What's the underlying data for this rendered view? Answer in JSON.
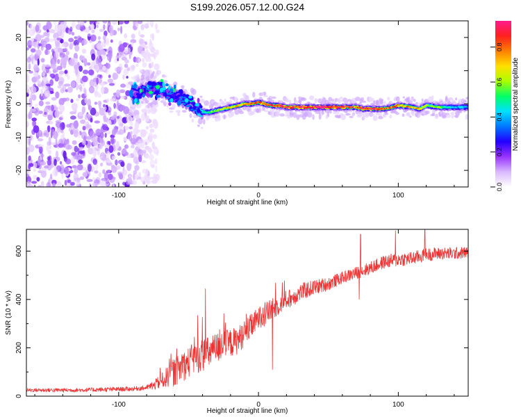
{
  "title": "S199.2026.057.12.00.G24",
  "chart_data": [
    {
      "type": "heatmap",
      "name": "spectrogram",
      "xlabel": "Height of straight line (km)",
      "ylabel": "Frequency (Hz)",
      "xlim": [
        -166,
        150
      ],
      "ylim": [
        -25,
        25
      ],
      "xticks": [
        -100,
        0,
        100
      ],
      "xtick_labels": [
        "-100",
        "0",
        "100"
      ],
      "yticks": [
        -20,
        -10,
        0,
        10,
        20
      ],
      "ytick_labels": [
        "-20",
        "-10",
        "0",
        "10",
        "20"
      ],
      "colorbar": {
        "label": "Normalized spectral amplitude",
        "range": [
          0,
          0.95
        ],
        "ticks": [
          0.0,
          0.2,
          0.4,
          0.6,
          0.8
        ],
        "tick_labels": [
          "0.0",
          "0.2",
          "0.4",
          "0.6",
          "0.8"
        ],
        "colormap": [
          "#ffffff",
          "#d9b8ff",
          "#9933ff",
          "#2200ff",
          "#0077ff",
          "#00e0ff",
          "#00ff66",
          "#aaff00",
          "#ffe000",
          "#ff8000",
          "#ff2020",
          "#ff1a8c"
        ]
      },
      "ridge": {
        "x": [
          -90,
          -80,
          -72,
          -65,
          -58,
          -50,
          -44,
          -40,
          -35,
          -30,
          -25,
          -20,
          -15,
          -10,
          -5,
          0,
          5,
          10,
          15,
          20,
          30,
          40,
          50,
          60,
          70,
          75,
          80,
          90,
          95,
          100,
          110,
          115,
          120,
          130,
          140,
          150
        ],
        "frequency": [
          3,
          4,
          5,
          3,
          2,
          0.5,
          -1.5,
          -2.5,
          -2.5,
          -2,
          -1.5,
          -1,
          -0.5,
          0,
          0,
          0.5,
          0,
          -0.5,
          -0.5,
          -1,
          -1,
          -1,
          -1,
          -1,
          -1,
          -1.5,
          -1.5,
          -1.5,
          -1,
          -0.5,
          -1,
          -1.5,
          -0.5,
          -1,
          -1,
          -1
        ],
        "amplitude": [
          0.25,
          0.3,
          0.35,
          0.3,
          0.3,
          0.35,
          0.4,
          0.45,
          0.55,
          0.6,
          0.65,
          0.7,
          0.72,
          0.78,
          0.8,
          0.8,
          0.82,
          0.85,
          0.88,
          0.9,
          0.92,
          0.93,
          0.93,
          0.9,
          0.85,
          0.88,
          0.9,
          0.82,
          0.8,
          0.8,
          0.75,
          0.7,
          0.65,
          0.55,
          0.45,
          0.4
        ]
      },
      "noise_region": {
        "x_range": [
          -166,
          -80
        ],
        "note": "broadband scattered noise across all frequencies"
      }
    },
    {
      "type": "line",
      "name": "snr",
      "xlabel": "Height of straight line (km)",
      "ylabel": "SNR (10 * v/v)",
      "xlim": [
        -166,
        150
      ],
      "ylim": [
        0,
        690
      ],
      "xticks": [
        -100,
        0,
        100
      ],
      "xtick_labels": [
        "-100",
        "0",
        "100"
      ],
      "yticks": [
        0,
        200,
        400,
        600
      ],
      "ytick_labels": [
        "0",
        "200",
        "400",
        "600"
      ],
      "color": "#ee3333",
      "trend": {
        "x": [
          -166,
          -130,
          -90,
          -80,
          -75,
          -70,
          -65,
          -60,
          -55,
          -50,
          -45,
          -40,
          -35,
          -30,
          -25,
          -20,
          -15,
          -10,
          -5,
          0,
          5,
          10,
          15,
          20,
          25,
          30,
          40,
          50,
          60,
          70,
          80,
          90,
          100,
          110,
          120,
          130,
          140,
          150
        ],
        "y": [
          25,
          25,
          30,
          35,
          45,
          60,
          80,
          100,
          120,
          140,
          160,
          170,
          180,
          200,
          210,
          220,
          230,
          260,
          290,
          320,
          340,
          360,
          380,
          400,
          410,
          430,
          450,
          465,
          490,
          510,
          530,
          555,
          565,
          570,
          585,
          590,
          590,
          595
        ]
      },
      "spread": {
        "x": [
          -166,
          -80,
          -70,
          -60,
          -40,
          -20,
          0,
          20,
          60,
          100,
          150
        ],
        "y": [
          8,
          10,
          30,
          60,
          70,
          60,
          50,
          40,
          25,
          30,
          25
        ]
      },
      "spikes": [
        {
          "x": -38,
          "y": 445
        },
        {
          "x": 12,
          "y": 395
        },
        {
          "x": 17,
          "y": 470
        },
        {
          "x": 73,
          "y": 670
        },
        {
          "x": 98,
          "y": 685
        },
        {
          "x": 119,
          "y": 688
        },
        {
          "x": 10,
          "y": 110
        },
        {
          "x": 72,
          "y": 400
        }
      ]
    }
  ]
}
